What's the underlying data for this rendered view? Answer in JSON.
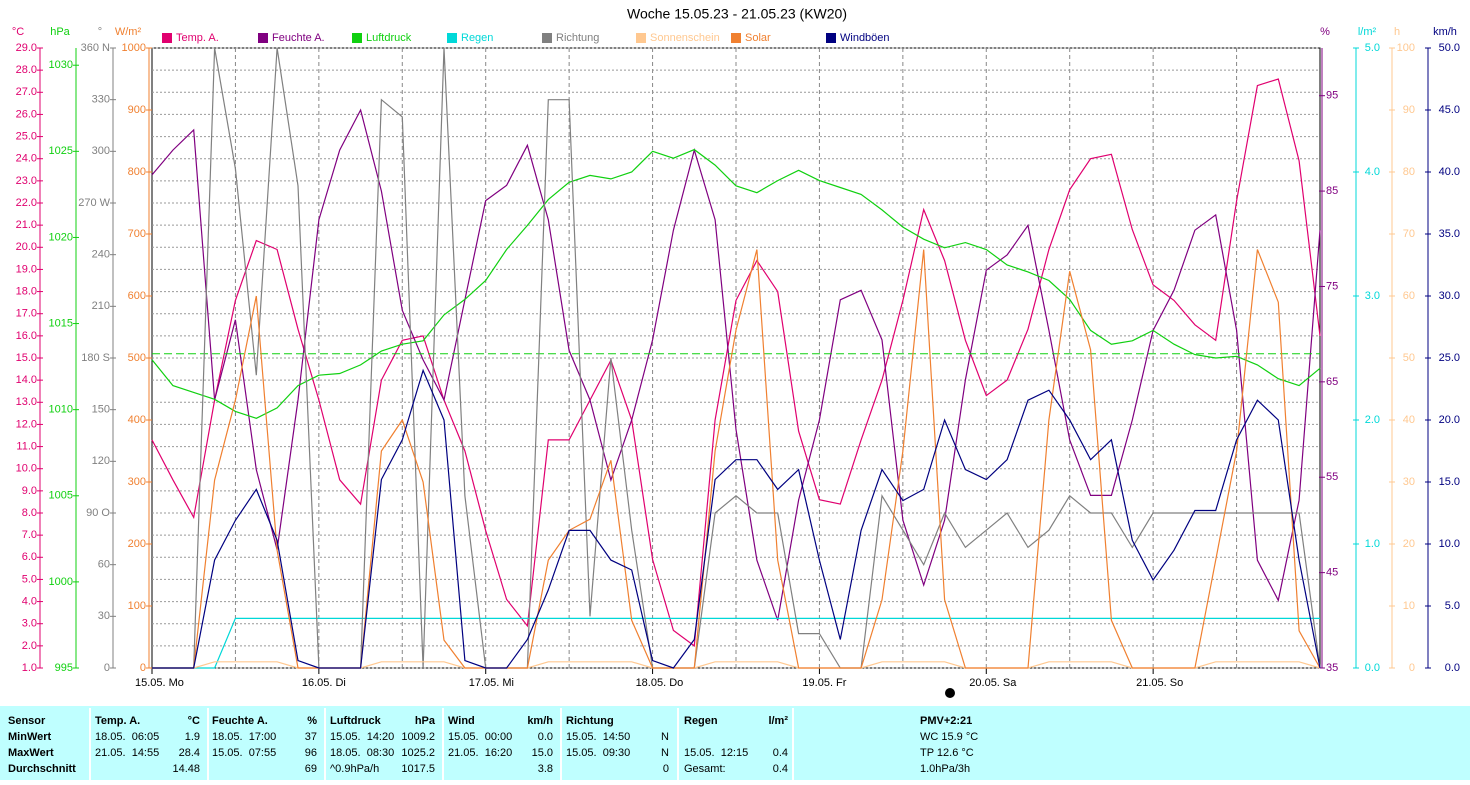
{
  "chart_data": {
    "type": "line",
    "title": "Woche 15.05.23 - 21.05.23 (KW20)",
    "grid": true,
    "categories": [
      "15.05. Mo",
      null,
      null,
      null,
      null,
      null,
      null,
      null,
      "16.05. Di",
      null,
      null,
      null,
      null,
      null,
      null,
      null,
      "17.05. Mi",
      null,
      null,
      null,
      null,
      null,
      null,
      null,
      "18.05. Do",
      null,
      null,
      null,
      null,
      null,
      null,
      null,
      "19.05. Fr",
      null,
      null,
      null,
      null,
      null,
      null,
      null,
      "20.05. Sa",
      null,
      null,
      null,
      null,
      null,
      null,
      null,
      "21.05. So",
      null,
      null,
      null,
      null,
      null,
      null,
      null,
      null
    ],
    "series": [
      {
        "name": "Temp. A.",
        "unit": "°C",
        "color": "#e0006f",
        "ylim": [
          1,
          29
        ],
        "yticks": [
          {
            "value": 1,
            "label": "1.0"
          },
          {
            "value": 2,
            "label": "2.0"
          },
          {
            "value": 3,
            "label": "3.0"
          },
          {
            "value": 4,
            "label": "4.0"
          },
          {
            "value": 5,
            "label": "5.0"
          },
          {
            "value": 6,
            "label": "6.0"
          },
          {
            "value": 7,
            "label": "7.0"
          },
          {
            "value": 8,
            "label": "8.0"
          },
          {
            "value": 9,
            "label": "9.0"
          },
          {
            "value": 10,
            "label": "10.0"
          },
          {
            "value": 11,
            "label": "11.0"
          },
          {
            "value": 12,
            "label": "12.0"
          },
          {
            "value": 13,
            "label": "13.0"
          },
          {
            "value": 14,
            "label": "14.0"
          },
          {
            "value": 15,
            "label": "15.0"
          },
          {
            "value": 16,
            "label": "16.0"
          },
          {
            "value": 17,
            "label": "17.0"
          },
          {
            "value": 18,
            "label": "18.0"
          },
          {
            "value": 19,
            "label": "19.0"
          },
          {
            "value": 20,
            "label": "20.0"
          },
          {
            "value": 21,
            "label": "21.0"
          },
          {
            "value": 22,
            "label": "22.0"
          },
          {
            "value": 23,
            "label": "23.0"
          },
          {
            "value": 24,
            "label": "24.0"
          },
          {
            "value": 25,
            "label": "25.0"
          },
          {
            "value": 26,
            "label": "26.0"
          },
          {
            "value": 27,
            "label": "27.0"
          },
          {
            "value": 28,
            "label": "28.0"
          },
          {
            "value": 29,
            "label": "29.0"
          }
        ],
        "values": [
          11.3,
          9.5,
          7.8,
          13.1,
          17.6,
          20.3,
          19.9,
          16.3,
          13.1,
          9.5,
          8.4,
          14.0,
          15.8,
          16.0,
          13.1,
          10.8,
          7.2,
          4.1,
          2.9,
          11.3,
          11.3,
          13.1,
          14.9,
          12.2,
          5.9,
          2.7,
          2.0,
          12.2,
          17.6,
          19.4,
          18.0,
          11.7,
          8.6,
          8.4,
          11.3,
          14.0,
          17.6,
          21.7,
          19.4,
          15.8,
          13.3,
          14.0,
          16.3,
          19.9,
          22.6,
          24.0,
          24.2,
          20.8,
          18.3,
          17.6,
          16.5,
          15.8,
          22.1,
          27.3,
          27.6,
          23.9,
          16.0
        ]
      },
      {
        "name": "Feuchte A.",
        "unit": "%",
        "color": "#800080",
        "ylim": [
          35,
          100
        ],
        "yticks": [
          35,
          45,
          55,
          65,
          75,
          85,
          95
        ],
        "values": [
          86.7,
          89.3,
          91.4,
          63.1,
          71.5,
          55.8,
          47.4,
          63.1,
          82.0,
          89.3,
          93.5,
          85.0,
          72.5,
          67.3,
          63.1,
          73.6,
          84.0,
          85.6,
          89.8,
          82.0,
          68.3,
          63.1,
          54.7,
          61.0,
          69.4,
          80.9,
          89.3,
          82.0,
          60.0,
          46.3,
          40.0,
          52.6,
          61.0,
          73.6,
          74.6,
          69.4,
          50.5,
          43.7,
          50.5,
          65.2,
          76.7,
          78.3,
          81.4,
          70.4,
          58.9,
          53.1,
          53.1,
          61.0,
          70.4,
          74.6,
          80.9,
          82.5,
          70.4,
          46.3,
          42.1,
          52.6,
          80.9
        ]
      },
      {
        "name": "Luftdruck",
        "unit": "hPa",
        "color": "#10d010",
        "ylim": [
          995,
          1031
        ],
        "yticks": [
          995,
          1000,
          1005,
          1010,
          1015,
          1020,
          1025,
          1030
        ],
        "hline": 1013.25,
        "values": [
          1012.9,
          1011.4,
          1011.0,
          1010.6,
          1009.9,
          1009.5,
          1010.1,
          1011.4,
          1012.0,
          1012.1,
          1012.6,
          1013.4,
          1013.8,
          1014.0,
          1015.5,
          1016.4,
          1017.5,
          1019.3,
          1020.7,
          1022.2,
          1023.2,
          1023.6,
          1023.4,
          1023.8,
          1025.0,
          1024.6,
          1025.1,
          1024.2,
          1023.0,
          1022.6,
          1023.3,
          1023.9,
          1023.3,
          1022.9,
          1022.5,
          1021.6,
          1020.6,
          1019.9,
          1019.4,
          1019.7,
          1019.3,
          1018.4,
          1018.0,
          1017.5,
          1016.4,
          1014.6,
          1013.8,
          1014.0,
          1014.6,
          1013.8,
          1013.2,
          1013.0,
          1013.1,
          1012.6,
          1011.8,
          1011.4,
          1012.4
        ]
      },
      {
        "name": "Regen",
        "unit": "l/m²",
        "color": "#00d8d8",
        "ylim": [
          0,
          5
        ],
        "yticks": [
          {
            "value": 0,
            "label": "0.0"
          },
          {
            "value": 1,
            "label": "1.0"
          },
          {
            "value": 2,
            "label": "2.0"
          },
          {
            "value": 3,
            "label": "3.0"
          },
          {
            "value": 4,
            "label": "4.0"
          },
          {
            "value": 5,
            "label": "5.0"
          }
        ],
        "values": [
          0,
          0,
          0,
          0,
          0.4,
          0.4,
          0.4,
          0.4,
          0.4,
          0.4,
          0.4,
          0.4,
          0.4,
          0.4,
          0.4,
          0.4,
          0.4,
          0.4,
          0.4,
          0.4,
          0.4,
          0.4,
          0.4,
          0.4,
          0.4,
          0.4,
          0.4,
          0.4,
          0.4,
          0.4,
          0.4,
          0.4,
          0.4,
          0.4,
          0.4,
          0.4,
          0.4,
          0.4,
          0.4,
          0.4,
          0.4,
          0.4,
          0.4,
          0.4,
          0.4,
          0.4,
          0.4,
          0.4,
          0.4,
          0.4,
          0.4,
          0.4,
          0.4,
          0.4,
          0.4,
          0.4,
          0.4
        ]
      },
      {
        "name": "Richtung",
        "unit": "°",
        "color": "#808080",
        "ylim": [
          0,
          360
        ],
        "yticks": [
          0,
          30,
          60,
          {
            "value": 90,
            "label": "90 O"
          },
          120,
          150,
          {
            "value": 180,
            "label": "180 S"
          },
          210,
          240,
          {
            "value": 270,
            "label": "270 W"
          },
          300,
          330,
          {
            "value": 360,
            "label": "360 N"
          }
        ],
        "values": [
          0,
          0,
          0,
          360,
          290,
          170,
          360,
          280,
          0,
          0,
          0,
          330,
          320,
          0,
          360,
          100,
          0,
          0,
          0,
          330,
          330,
          30,
          180,
          80,
          0,
          0,
          0,
          90,
          100,
          90,
          90,
          20,
          20,
          0,
          0,
          100,
          80,
          60,
          90,
          70,
          80,
          90,
          70,
          80,
          100,
          90,
          90,
          70,
          90,
          90,
          90,
          90,
          90,
          90,
          90,
          90,
          0
        ]
      },
      {
        "name": "Sonnenschein",
        "unit": "h",
        "color": "#ffc890",
        "ylim": [
          0,
          100
        ],
        "yticks": [
          0,
          10,
          20,
          30,
          40,
          50,
          60,
          70,
          80,
          90,
          100
        ],
        "values": [
          0,
          0,
          0,
          1,
          1,
          1,
          1,
          0,
          0,
          0,
          0,
          1,
          1,
          1,
          1,
          0,
          0,
          0,
          0,
          1,
          1,
          1,
          1,
          1,
          0,
          0,
          0,
          1,
          1,
          1,
          1,
          0,
          0,
          0,
          0,
          1,
          1,
          1,
          1,
          0,
          0,
          0,
          0,
          1,
          1,
          1,
          1,
          0,
          0,
          0,
          0,
          1,
          1,
          1,
          1,
          1,
          0
        ]
      },
      {
        "name": "Solar",
        "unit": "W/m²",
        "color": "#f08030",
        "ylim": [
          0,
          1000
        ],
        "yticks": [
          0,
          100,
          200,
          300,
          400,
          500,
          600,
          700,
          800,
          900,
          1000
        ],
        "values": [
          0,
          0,
          0,
          303,
          432,
          600,
          190,
          0,
          0,
          0,
          0,
          350,
          400,
          300,
          45,
          0,
          0,
          0,
          0,
          174,
          222,
          240,
          335,
          77,
          0,
          0,
          0,
          350,
          545,
          675,
          174,
          0,
          0,
          0,
          0,
          110,
          350,
          675,
          110,
          0,
          0,
          0,
          0,
          400,
          640,
          513,
          77,
          0,
          0,
          0,
          0,
          174,
          350,
          675,
          590,
          60,
          0
        ]
      },
      {
        "name": "Windböen",
        "unit": "km/h",
        "color": "#000080",
        "ylim": [
          0,
          50
        ],
        "yticks": [
          {
            "value": 0,
            "label": "0.0"
          },
          {
            "value": 5,
            "label": "5.0"
          },
          {
            "value": 10,
            "label": "10.0"
          },
          {
            "value": 15,
            "label": "15.0"
          },
          {
            "value": 20,
            "label": "20.0"
          },
          {
            "value": 25,
            "label": "25.0"
          },
          {
            "value": 30,
            "label": "30.0"
          },
          {
            "value": 35,
            "label": "35.0"
          },
          {
            "value": 40,
            "label": "40.0"
          },
          {
            "value": 45,
            "label": "45.0"
          },
          {
            "value": 50,
            "label": "50.0"
          }
        ],
        "values": [
          0,
          0,
          0,
          8.7,
          11.9,
          14.4,
          10.3,
          0.6,
          0,
          0,
          0,
          15.2,
          18.4,
          24.0,
          20.0,
          0.6,
          0,
          0,
          2.3,
          6.3,
          11.1,
          11.1,
          8.7,
          7.9,
          0.6,
          0,
          2.3,
          15.2,
          16.8,
          16.8,
          14.4,
          16.0,
          8.7,
          2.3,
          11.1,
          16.0,
          13.5,
          14.4,
          20.0,
          16.0,
          15.2,
          16.8,
          21.6,
          22.4,
          20.0,
          16.8,
          18.4,
          10.3,
          7.1,
          9.5,
          12.7,
          12.7,
          18.4,
          21.6,
          20.0,
          8.7,
          0
        ]
      }
    ]
  },
  "table": {
    "header": "Sensor",
    "row_labels": [
      "MinWert",
      "MaxWert",
      "Durchschnitt"
    ],
    "groups": [
      {
        "name": "Temp. A.",
        "unit": "°C",
        "rows": [
          [
            "18.05.  06:05",
            "1.9"
          ],
          [
            "21.05.  14:55",
            "28.4"
          ],
          [
            null,
            "14.48"
          ]
        ]
      },
      {
        "name": "Feuchte A.",
        "unit": "%",
        "rows": [
          [
            "18.05.  17:00",
            "37"
          ],
          [
            "15.05.  07:55",
            "96"
          ],
          [
            null,
            "69"
          ]
        ]
      },
      {
        "name": "Luftdruck",
        "unit": "hPa",
        "rows": [
          [
            "15.05.  14:20",
            "1009.2"
          ],
          [
            "18.05.  08:30",
            "1025.2"
          ],
          [
            "^0.9hPa/h",
            "1017.5"
          ]
        ]
      },
      {
        "name": "Wind",
        "unit": "km/h",
        "rows": [
          [
            "15.05.  00:00",
            "0.0"
          ],
          [
            "21.05.  16:20",
            "15.0"
          ],
          [
            null,
            "3.8"
          ]
        ]
      },
      {
        "name": "Richtung",
        "rows": [
          [
            "15.05.  14:50",
            "N"
          ],
          [
            "15.05.  09:30",
            "N"
          ],
          [
            null,
            "0"
          ]
        ]
      },
      {
        "name": "Regen",
        "unit": "l/m²",
        "rows": [
          [
            null,
            null
          ],
          [
            "15.05.  12:15",
            "0.4"
          ],
          [
            "Gesamt:",
            "0.4"
          ]
        ]
      }
    ],
    "pmv": {
      "title": "PMV+2:21",
      "lines": [
        "WC 15.9 °C",
        "TP 12.6 °C",
        "1.0hPa/3h"
      ]
    }
  }
}
